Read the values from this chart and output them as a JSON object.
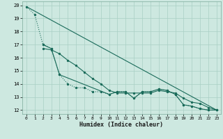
{
  "xlabel": "Humidex (Indice chaleur)",
  "background_color": "#cde8e0",
  "grid_color": "#a8cfc4",
  "line_color": "#1a6b5a",
  "xlim": [
    -0.5,
    23.5
  ],
  "ylim": [
    11.7,
    20.3
  ],
  "xticks": [
    0,
    1,
    2,
    3,
    4,
    5,
    6,
    7,
    8,
    9,
    10,
    11,
    12,
    13,
    14,
    15,
    16,
    17,
    18,
    19,
    20,
    21,
    22,
    23
  ],
  "yticks": [
    12,
    13,
    14,
    15,
    16,
    17,
    18,
    19,
    20
  ],
  "series": [
    {
      "style": "dotted_markers",
      "x": [
        0,
        1,
        2,
        3,
        4,
        5,
        6,
        7,
        8,
        9,
        10,
        11,
        12,
        13,
        14,
        15,
        16,
        17,
        18,
        19,
        20,
        21,
        22,
        23
      ],
      "y": [
        19.9,
        19.3,
        17.0,
        16.7,
        14.7,
        14.0,
        13.7,
        13.7,
        13.4,
        13.4,
        13.2,
        13.4,
        13.4,
        12.9,
        13.4,
        13.4,
        13.6,
        13.5,
        13.2,
        12.4,
        12.3,
        12.1,
        12.0,
        12.0
      ]
    },
    {
      "style": "solid_markers",
      "x": [
        2,
        3,
        4,
        5,
        6,
        7,
        8,
        9,
        10,
        11,
        12,
        13,
        14,
        15,
        16,
        17,
        18,
        19,
        20,
        21,
        22,
        23
      ],
      "y": [
        16.7,
        16.6,
        16.3,
        15.8,
        15.4,
        14.9,
        14.4,
        14.0,
        13.5,
        13.3,
        13.3,
        13.3,
        13.3,
        13.3,
        13.5,
        13.4,
        13.3,
        12.9,
        12.6,
        12.5,
        12.2,
        12.0
      ]
    },
    {
      "style": "solid_no_markers",
      "x": [
        0,
        23
      ],
      "y": [
        19.9,
        12.0
      ]
    },
    {
      "style": "solid_markers",
      "x": [
        2,
        3,
        4,
        10,
        11,
        12,
        13,
        14,
        15,
        16,
        17,
        18,
        19,
        20,
        21,
        22,
        23
      ],
      "y": [
        17.0,
        16.7,
        14.7,
        13.2,
        13.4,
        13.4,
        12.9,
        13.4,
        13.4,
        13.6,
        13.5,
        13.2,
        12.4,
        12.3,
        12.1,
        12.0,
        12.0
      ]
    }
  ]
}
